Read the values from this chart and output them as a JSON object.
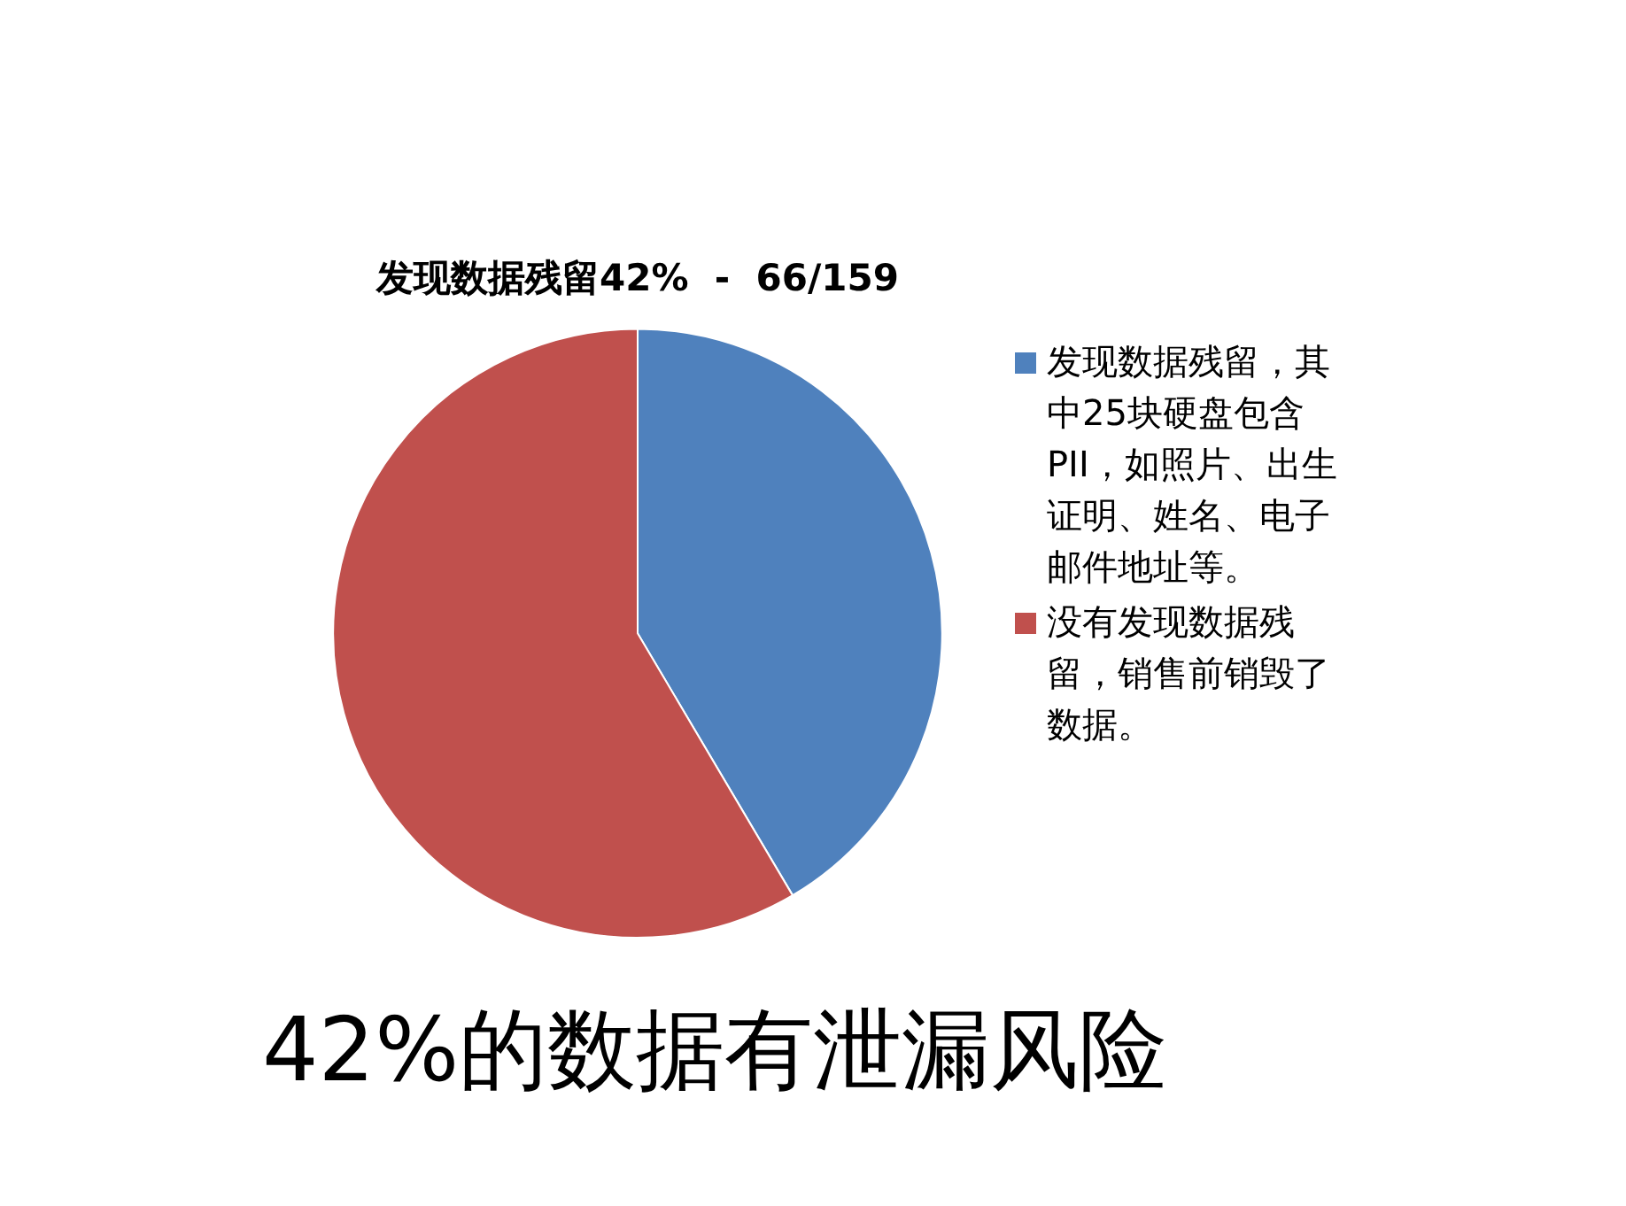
{
  "chart_data": {
    "type": "pie",
    "title": "发现数据残留42%  -  66/159",
    "categories": [
      "发现数据残留，其中25块硬盘包含PII，如照片、出生证明、姓名、电子邮件地址等。",
      "没有发现数据残留，销售前销毁了数据。"
    ],
    "values": [
      41.5,
      58.5
    ],
    "colors": [
      "#4f81bd",
      "#c0504d"
    ],
    "legend": "right",
    "annotations": [
      "42%的数据有泄漏风险"
    ]
  }
}
